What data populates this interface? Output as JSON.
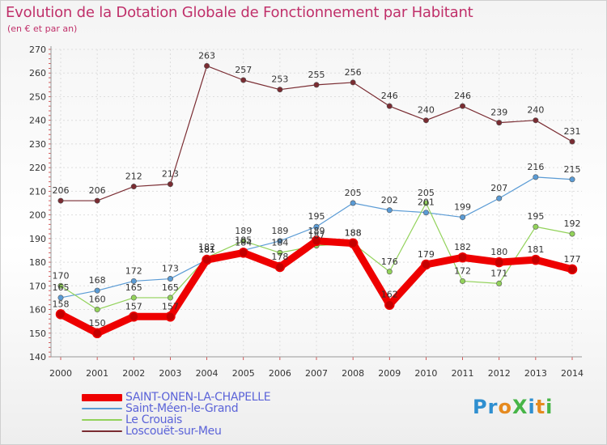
{
  "title": "Evolution de la Dotation Globale de Fonctionnement par Habitant",
  "subtitle": "(en € et par an)",
  "logo": {
    "text": "ProXiti"
  },
  "chart_data": {
    "type": "line",
    "x": [
      "2000",
      "2001",
      "2002",
      "2003",
      "2004",
      "2005",
      "2006",
      "2007",
      "2008",
      "2009",
      "2010",
      "2011",
      "2012",
      "2013",
      "2014"
    ],
    "ylim": [
      140,
      270
    ],
    "yticks": [
      140,
      150,
      160,
      170,
      180,
      190,
      200,
      210,
      220,
      230,
      240,
      250,
      260,
      270
    ],
    "grid": true,
    "legend_position": "bottom-left",
    "series": [
      {
        "name": "SAINT-ONEN-LA-CHAPELLE",
        "color": "#ee0000",
        "width": 9,
        "marker": 5.5,
        "values": [
          158,
          150,
          157,
          157,
          181,
          184,
          178,
          189,
          188,
          162,
          179,
          182,
          180,
          181,
          177
        ]
      },
      {
        "name": "Saint-Méen-le-Grand",
        "color": "#5a9bd5",
        "width": 1.2,
        "marker": 3.2,
        "values": [
          165,
          168,
          172,
          173,
          181,
          185,
          189,
          195,
          205,
          202,
          201,
          199,
          207,
          216,
          215
        ]
      },
      {
        "name": "Le Crouais",
        "color": "#92d25a",
        "width": 1.2,
        "marker": 3.2,
        "values": [
          170,
          160,
          165,
          165,
          182,
          189,
          184,
          187,
          188,
          176,
          205,
          172,
          171,
          195,
          192
        ]
      },
      {
        "name": "Loscouët-sur-Meu",
        "color": "#7a2c32",
        "width": 1.2,
        "marker": 3.2,
        "values": [
          206,
          206,
          212,
          213,
          263,
          257,
          253,
          255,
          256,
          246,
          240,
          246,
          239,
          240,
          231
        ]
      }
    ]
  }
}
